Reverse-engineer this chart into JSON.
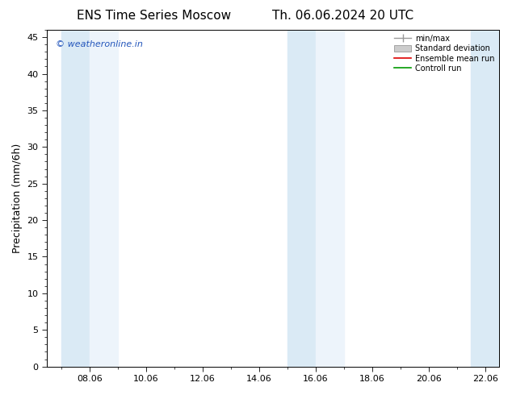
{
  "title_left": "ENS Time Series Moscow",
  "title_right": "Th. 06.06.2024 20 UTC",
  "ylabel": "Precipitation (mm/6h)",
  "watermark": "© weatheronline.in",
  "ylim": [
    0,
    46
  ],
  "yticks": [
    0,
    5,
    10,
    15,
    20,
    25,
    30,
    35,
    40,
    45
  ],
  "xtick_labels": [
    "08.06",
    "10.06",
    "12.06",
    "14.06",
    "16.06",
    "18.06",
    "20.06",
    "22.06"
  ],
  "xtick_positions": [
    2,
    4,
    6,
    8,
    10,
    12,
    14,
    16
  ],
  "xmin": 1,
  "xmax": 17,
  "shaded_bands": [
    [
      1.0,
      2.0
    ],
    [
      2.0,
      3.0
    ],
    [
      9.0,
      10.0
    ],
    [
      10.0,
      11.0
    ],
    [
      16.0,
      17.0
    ],
    [
      17.0,
      17.5
    ]
  ],
  "shade_color": "#daeaf5",
  "background_color": "#ffffff",
  "legend_labels": [
    "min/max",
    "Standard deviation",
    "Ensemble mean run",
    "Controll run"
  ],
  "legend_colors": [
    "#aaaaaa",
    "#cccccc",
    "#dd0000",
    "#009900"
  ],
  "title_fontsize": 11,
  "tick_fontsize": 8,
  "ylabel_fontsize": 9
}
